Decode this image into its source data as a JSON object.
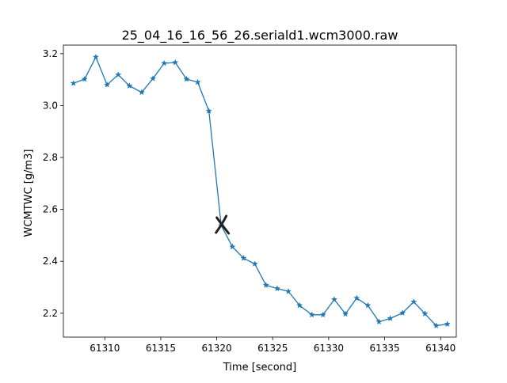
{
  "chart_data": {
    "type": "line",
    "title": "25_04_16_16_56_26.seriald1.wcm3000.raw",
    "xlabel": "Time [second]",
    "ylabel": "WCMTWC [g/m3]",
    "xlim": [
      61306.3,
      61341.4
    ],
    "ylim": [
      2.108,
      3.233
    ],
    "xticks": [
      61310,
      61315,
      61320,
      61325,
      61330,
      61335,
      61340
    ],
    "yticks": [
      2.2,
      2.4,
      2.6,
      2.8,
      3.0,
      3.2
    ],
    "xtick_labels": [
      "61310",
      "61315",
      "61320",
      "61325",
      "61330",
      "61335",
      "61340"
    ],
    "ytick_labels": [
      "2.2",
      "2.4",
      "2.6",
      "2.8",
      "3.0",
      "3.2"
    ],
    "grid": false,
    "marker": "star",
    "series": [
      {
        "color": "#1f77b4",
        "x": [
          61307.2,
          61308.2,
          61309.2,
          61310.2,
          61311.2,
          61312.2,
          61313.3,
          61314.3,
          61315.3,
          61316.3,
          61317.3,
          61318.3,
          61319.3,
          61320.4,
          61321.4,
          61322.4,
          61323.4,
          61324.4,
          61325.4,
          61326.4,
          61327.4,
          61328.5,
          61329.5,
          61330.5,
          61331.5,
          61332.5,
          61333.5,
          61334.5,
          61335.5,
          61336.6,
          61337.6,
          61338.6,
          61339.6,
          61340.6
        ],
        "values": [
          3.086,
          3.102,
          3.187,
          3.08,
          3.119,
          3.076,
          3.051,
          3.104,
          3.163,
          3.166,
          3.102,
          3.09,
          2.979,
          2.538,
          2.456,
          2.412,
          2.39,
          2.308,
          2.295,
          2.284,
          2.23,
          2.194,
          2.194,
          2.253,
          2.197,
          2.258,
          2.23,
          2.167,
          2.18,
          2.201,
          2.244,
          2.198,
          2.152,
          2.158
        ]
      }
    ],
    "annotations": [
      {
        "symbol": "x",
        "x": 61320.5,
        "y": 2.538,
        "color": "#222222"
      }
    ]
  }
}
